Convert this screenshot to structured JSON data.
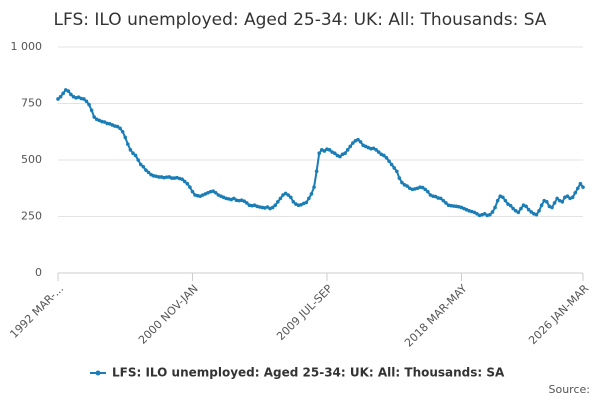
{
  "chart_data": {
    "type": "line",
    "title": "LFS: ILO unemployed: Aged 25-34: UK: All: Thousands: SA",
    "source": "Source:",
    "categories": [
      "1992 MAR-...",
      null,
      null,
      null,
      null,
      null,
      null,
      null,
      null,
      null,
      null,
      null,
      null,
      null,
      null,
      null,
      null,
      null,
      null,
      null,
      null,
      null,
      null,
      null,
      null,
      null,
      null,
      null,
      null,
      null,
      null,
      null,
      null,
      null,
      null,
      null,
      null,
      null,
      null,
      null,
      null,
      null,
      null,
      null,
      null,
      null,
      null,
      null,
      null,
      null,
      null,
      null,
      "2000 NOV-JAN",
      null,
      null,
      null,
      null,
      null,
      null,
      null,
      null,
      null,
      null,
      null,
      null,
      null,
      null,
      null,
      null,
      null,
      null,
      null,
      null,
      null,
      null,
      null,
      null,
      null,
      null,
      null,
      null,
      null,
      null,
      null,
      null,
      null,
      null,
      null,
      null,
      null,
      null,
      null,
      null,
      null,
      null,
      null,
      null,
      null,
      null,
      null,
      null,
      null,
      null,
      null,
      "2009 JUL-SEP",
      null,
      null,
      null,
      null,
      null,
      null,
      null,
      null,
      null,
      null,
      null,
      null,
      null,
      null,
      null,
      null,
      null,
      null,
      null,
      null,
      null,
      null,
      null,
      null,
      null,
      null,
      null,
      null,
      null,
      null,
      null,
      null,
      null,
      null,
      null,
      null,
      null,
      null,
      null,
      null,
      null,
      null,
      null,
      null,
      null,
      null,
      null,
      null,
      null,
      null,
      null,
      "2018 MAR-MAY",
      null,
      null,
      null,
      null,
      null,
      null,
      null,
      null,
      null,
      null,
      null,
      null,
      null,
      null,
      null,
      null,
      null,
      null,
      null,
      null,
      null,
      null,
      null,
      null,
      null,
      null,
      null,
      null,
      null,
      null,
      null,
      null,
      null,
      null,
      null,
      null,
      null,
      null,
      null,
      null,
      null,
      null,
      null,
      null,
      null,
      null,
      "2026 JAN-MAR"
    ],
    "series": [
      {
        "name": "LFS: ILO unemployed: Aged 25-34: UK: All: Thousands: SA",
        "color": "#1a7db6",
        "values": [
          770,
          780,
          795,
          810,
          805,
          790,
          780,
          775,
          778,
          772,
          770,
          760,
          745,
          720,
          690,
          680,
          675,
          670,
          668,
          662,
          660,
          655,
          650,
          648,
          640,
          625,
          600,
          570,
          545,
          530,
          520,
          500,
          480,
          470,
          455,
          445,
          435,
          430,
          428,
          425,
          425,
          422,
          424,
          425,
          420,
          420,
          422,
          418,
          415,
          405,
          395,
          380,
          360,
          345,
          342,
          340,
          345,
          350,
          355,
          360,
          362,
          355,
          345,
          340,
          335,
          330,
          328,
          325,
          330,
          322,
          320,
          322,
          318,
          310,
          300,
          298,
          300,
          295,
          292,
          290,
          288,
          292,
          285,
          290,
          300,
          315,
          330,
          345,
          352,
          345,
          335,
          315,
          305,
          300,
          302,
          308,
          312,
          330,
          350,
          380,
          450,
          530,
          545,
          540,
          548,
          545,
          535,
          530,
          520,
          515,
          525,
          530,
          545,
          560,
          575,
          585,
          590,
          580,
          565,
          560,
          555,
          550,
          552,
          545,
          535,
          525,
          520,
          510,
          495,
          480,
          465,
          450,
          420,
          400,
          390,
          385,
          375,
          370,
          372,
          375,
          380,
          378,
          370,
          360,
          345,
          340,
          338,
          332,
          330,
          320,
          310,
          300,
          298,
          296,
          295,
          293,
          290,
          285,
          280,
          275,
          272,
          268,
          262,
          255,
          258,
          262,
          255,
          258,
          270,
          290,
          320,
          340,
          335,
          320,
          305,
          298,
          285,
          275,
          268,
          285,
          300,
          295,
          280,
          270,
          262,
          258,
          275,
          300,
          320,
          315,
          295,
          290,
          310,
          330,
          320,
          315,
          335,
          340,
          330,
          335,
          355,
          375,
          395,
          380
        ]
      }
    ],
    "ylim": [
      0,
      1000
    ],
    "yticks": [
      0,
      250,
      500,
      750,
      {
        "value": 1000,
        "label": "1 000"
      }
    ],
    "grid": true
  }
}
